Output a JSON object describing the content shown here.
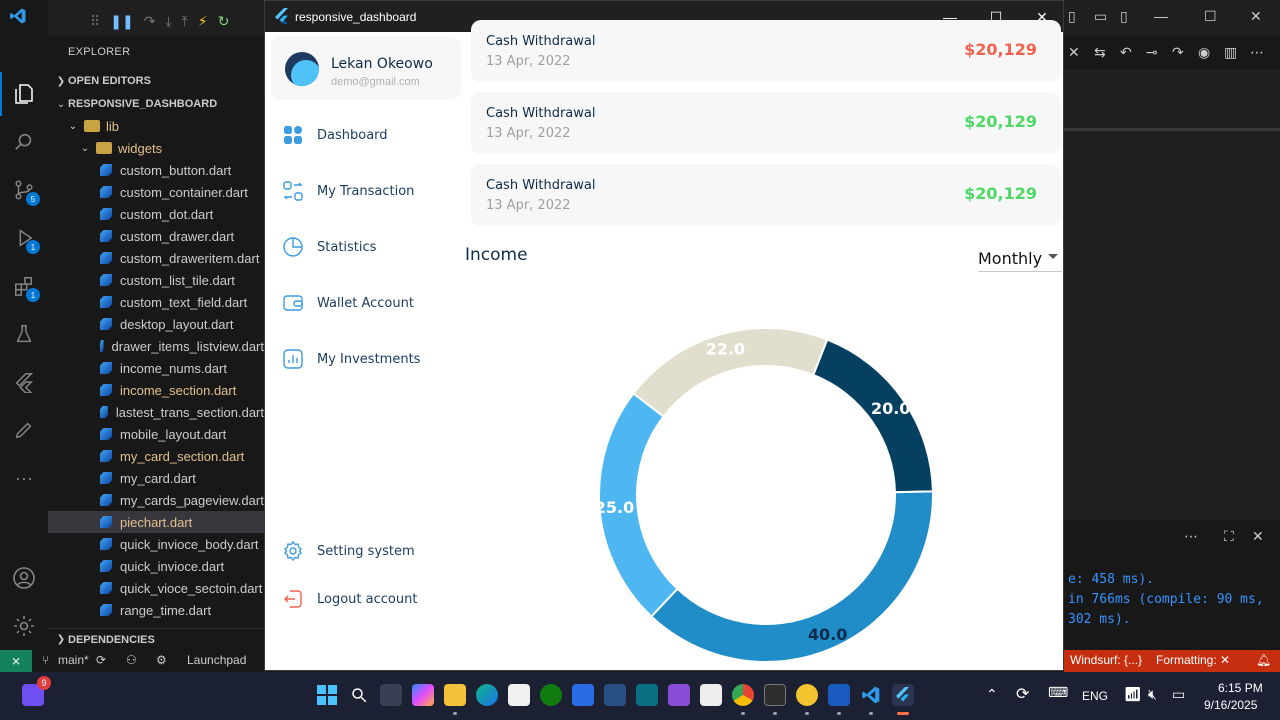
{
  "vscode": {
    "explorer_title": "EXPLORER",
    "open_editors": "OPEN EDITORS",
    "project": "RESPONSIVE_DASHBOARD",
    "dependencies": "DEPENDENCIES",
    "tree": [
      {
        "label": "lib",
        "type": "folder",
        "color": "yellow"
      },
      {
        "label": "widgets",
        "type": "folder",
        "color": "yellow"
      },
      {
        "label": "custom_button.dart",
        "type": "file"
      },
      {
        "label": "custom_container.dart",
        "type": "file"
      },
      {
        "label": "custom_dot.dart",
        "type": "file"
      },
      {
        "label": "custom_drawer.dart",
        "type": "file"
      },
      {
        "label": "custom_draweritem.dart",
        "type": "file"
      },
      {
        "label": "custom_list_tile.dart",
        "type": "file"
      },
      {
        "label": "custom_text_field.dart",
        "type": "file"
      },
      {
        "label": "desktop_layout.dart",
        "type": "file"
      },
      {
        "label": "drawer_items_listview.dart",
        "type": "file"
      },
      {
        "label": "income_nums.dart",
        "type": "file"
      },
      {
        "label": "income_section.dart",
        "type": "file",
        "color": "yellow"
      },
      {
        "label": "lastest_trans_section.dart",
        "type": "file"
      },
      {
        "label": "mobile_layout.dart",
        "type": "file"
      },
      {
        "label": "my_card_section.dart",
        "type": "file",
        "color": "yellow"
      },
      {
        "label": "my_card.dart",
        "type": "file"
      },
      {
        "label": "my_cards_pageview.dart",
        "type": "file"
      },
      {
        "label": "piechart.dart",
        "type": "file",
        "color": "yellow",
        "selected": true
      },
      {
        "label": "quick_invioce_body.dart",
        "type": "file"
      },
      {
        "label": "quick_invioce.dart",
        "type": "file"
      },
      {
        "label": "quick_vioce_sectoin.dart",
        "type": "file"
      },
      {
        "label": "range_time.dart",
        "type": "file"
      }
    ],
    "badges": {
      "source_control": "5",
      "debug": "1",
      "extensions": "1"
    },
    "panel_lines": [
      "e: 458 ms).",
      " in 766ms (compile: 90 ms,",
      "302 ms)."
    ],
    "status": {
      "branch": "main*",
      "launchpad": "Launchpad",
      "windsurf": "Windsurf: {...}",
      "formatting": "Formatting: ✕"
    }
  },
  "app": {
    "window_title": "responsive_dashboard",
    "profile": {
      "name": "Lekan Okeowo",
      "email": "demo@gmail.com"
    },
    "nav": [
      {
        "label": "Dashboard",
        "icon": "dashboard-grid-icon"
      },
      {
        "label": "My Transaction",
        "icon": "transaction-icon"
      },
      {
        "label": "Statistics",
        "icon": "statistics-icon"
      },
      {
        "label": "Wallet Account",
        "icon": "wallet-icon"
      },
      {
        "label": "My Investments",
        "icon": "investments-icon"
      }
    ],
    "bottom_nav": [
      {
        "label": "Setting system",
        "icon": "settings-icon"
      },
      {
        "label": "Logout account",
        "icon": "logout-icon"
      }
    ],
    "transactions": [
      {
        "title": "Cash Withdrawal",
        "date": "13 Apr, 2022",
        "amount": "$20,129",
        "color": "#f0624d"
      },
      {
        "title": "Cash Withdrawal",
        "date": "13 Apr, 2022",
        "amount": "$20,129",
        "color": "#4cd964"
      },
      {
        "title": "Cash Withdrawal",
        "date": "13 Apr, 2022",
        "amount": "$20,129",
        "color": "#4cd964"
      }
    ],
    "income": {
      "title": "Income",
      "period": "Monthly"
    }
  },
  "chart_data": {
    "type": "pie",
    "series": [
      {
        "value": 20.0,
        "label": "20.0",
        "color": "#064061"
      },
      {
        "value": 40.0,
        "label": "40.0",
        "color": "#208cc8"
      },
      {
        "value": 25.0,
        "label": "25.0",
        "color": "#4eb7f2"
      },
      {
        "value": 22.0,
        "label": "22.0",
        "color": "#e2decd"
      }
    ]
  },
  "taskbar": {
    "lang": "ENG",
    "time": "6:15 PM",
    "date": "9/16/2025",
    "notification_badge": "9"
  }
}
